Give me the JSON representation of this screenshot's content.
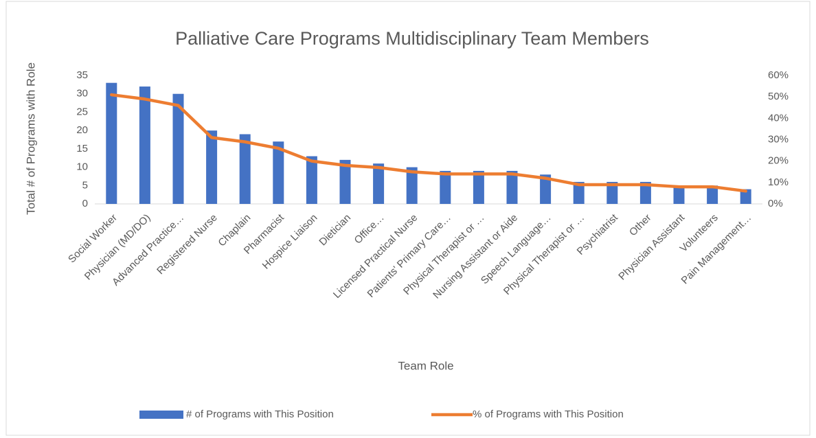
{
  "chart_data": {
    "type": "bar_line",
    "title": "Palliative Care Programs Multidisciplinary Team Members",
    "x_label": "Team Role",
    "y_label": "Total # of Programs with Role",
    "categories": [
      "Social Worker",
      "Physician (MD/DO)",
      "Advanced Practice…",
      "Registered Nurse",
      "Chaplain",
      "Pharmacist",
      "Hospice Liaison",
      "Dietician",
      "Office…",
      "Licensed Practical Nurse",
      "Patients' Primary Care…",
      "Physical Therapist or …",
      "Nursing Assistant or Aide",
      "Speech Language…",
      "Physical Therapist or …",
      "Psychiatrist",
      "Other",
      "Physician Assistant",
      "Volunteers",
      "Pain Management…"
    ],
    "series": [
      {
        "name": "# of Programs with This Position",
        "type": "bar",
        "color": "#4472c4",
        "values": [
          33,
          32,
          30,
          20,
          19,
          17,
          13,
          12,
          11,
          10,
          9,
          9,
          9,
          8,
          6,
          6,
          6,
          5,
          5,
          4
        ]
      },
      {
        "name": "% of Programs with This Position",
        "type": "line",
        "axis": "y2",
        "color": "#ed7d31",
        "values": [
          51,
          49,
          46,
          31,
          29,
          26,
          20,
          18,
          17,
          15,
          14,
          14,
          14,
          12,
          9,
          9,
          9,
          8,
          8,
          6
        ]
      }
    ],
    "ylim": [
      0,
      35
    ],
    "yticks": [
      0,
      5,
      10,
      15,
      20,
      25,
      30,
      35
    ],
    "y2lim": [
      0,
      60
    ],
    "y2ticks": [
      {
        "value": 0,
        "label": "0%"
      },
      {
        "value": 10,
        "label": "10%"
      },
      {
        "value": 20,
        "label": "20%"
      },
      {
        "value": 30,
        "label": "30%"
      },
      {
        "value": 40,
        "label": "40%"
      },
      {
        "value": 50,
        "label": "50%"
      },
      {
        "value": 60,
        "label": "60%"
      }
    ],
    "legend": "bottom"
  }
}
